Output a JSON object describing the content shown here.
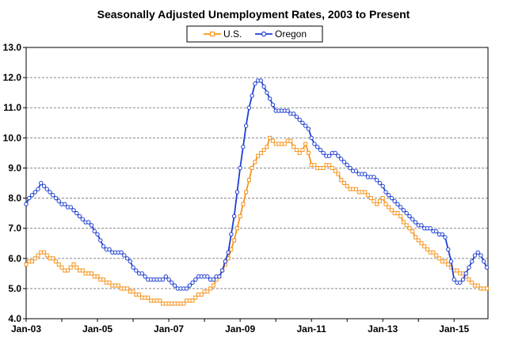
{
  "chart_data": {
    "type": "line",
    "title": "Seasonally Adjusted Unemployment Rates, 2003 to Present",
    "xlabel": "",
    "ylabel": "",
    "ylim": [
      4.0,
      13.0
    ],
    "yticks": [
      "4.0",
      "5.0",
      "6.0",
      "7.0",
      "8.0",
      "9.0",
      "10.0",
      "11.0",
      "12.0",
      "13.0"
    ],
    "xticks": [
      {
        "label": "Jan-03",
        "year": 2003
      },
      {
        "label": "Jan-05",
        "year": 2005
      },
      {
        "label": "Jan-07",
        "year": 2007
      },
      {
        "label": "Jan-09",
        "year": 2009
      },
      {
        "label": "Jan-11",
        "year": 2011
      },
      {
        "label": "Jan-13",
        "year": 2013
      },
      {
        "label": "Jan-15",
        "year": 2015
      }
    ],
    "xlim": [
      2003.0,
      2015.95
    ],
    "grid": true,
    "legend": "top-center",
    "series": [
      {
        "name": "U.S.",
        "color": "#F7941D",
        "marker": "square",
        "points": [
          [
            2003.0,
            5.8
          ],
          [
            2003.25,
            6.0
          ],
          [
            2003.45,
            6.3
          ],
          [
            2003.6,
            6.1
          ],
          [
            2003.8,
            5.9
          ],
          [
            2004.0,
            5.7
          ],
          [
            2004.15,
            5.6
          ],
          [
            2004.3,
            5.8
          ],
          [
            2004.5,
            5.6
          ],
          [
            2004.8,
            5.5
          ],
          [
            2005.0,
            5.4
          ],
          [
            2005.3,
            5.2
          ],
          [
            2005.5,
            5.1
          ],
          [
            2005.75,
            5.0
          ],
          [
            2006.0,
            4.9
          ],
          [
            2006.3,
            4.7
          ],
          [
            2006.6,
            4.6
          ],
          [
            2006.9,
            4.5
          ],
          [
            2007.0,
            4.5
          ],
          [
            2007.3,
            4.5
          ],
          [
            2007.6,
            4.6
          ],
          [
            2007.9,
            4.8
          ],
          [
            2008.2,
            5.0
          ],
          [
            2008.45,
            5.5
          ],
          [
            2008.7,
            6.1
          ],
          [
            2008.9,
            6.9
          ],
          [
            2009.1,
            7.9
          ],
          [
            2009.3,
            8.9
          ],
          [
            2009.5,
            9.4
          ],
          [
            2009.7,
            9.6
          ],
          [
            2009.85,
            10.0
          ],
          [
            2010.0,
            9.8
          ],
          [
            2010.2,
            9.8
          ],
          [
            2010.4,
            9.9
          ],
          [
            2010.55,
            9.6
          ],
          [
            2010.7,
            9.5
          ],
          [
            2010.85,
            9.8
          ],
          [
            2011.0,
            9.1
          ],
          [
            2011.2,
            9.0
          ],
          [
            2011.5,
            9.1
          ],
          [
            2011.7,
            8.9
          ],
          [
            2011.9,
            8.5
          ],
          [
            2012.1,
            8.3
          ],
          [
            2012.4,
            8.2
          ],
          [
            2012.6,
            8.1
          ],
          [
            2012.8,
            7.8
          ],
          [
            2013.0,
            8.0
          ],
          [
            2013.2,
            7.6
          ],
          [
            2013.4,
            7.5
          ],
          [
            2013.6,
            7.2
          ],
          [
            2013.8,
            6.9
          ],
          [
            2014.0,
            6.6
          ],
          [
            2014.2,
            6.3
          ],
          [
            2014.5,
            6.1
          ],
          [
            2014.8,
            5.8
          ],
          [
            2015.0,
            5.6
          ],
          [
            2015.2,
            5.5
          ],
          [
            2015.4,
            5.3
          ],
          [
            2015.6,
            5.1
          ],
          [
            2015.8,
            5.0
          ],
          [
            2015.95,
            5.0
          ]
        ]
      },
      {
        "name": "Oregon",
        "color": "#1F3FD2",
        "marker": "circle",
        "points": [
          [
            2003.0,
            7.8
          ],
          [
            2003.15,
            8.1
          ],
          [
            2003.3,
            8.3
          ],
          [
            2003.45,
            8.5
          ],
          [
            2003.6,
            8.3
          ],
          [
            2003.8,
            8.0
          ],
          [
            2004.0,
            7.8
          ],
          [
            2004.2,
            7.7
          ],
          [
            2004.4,
            7.5
          ],
          [
            2004.6,
            7.3
          ],
          [
            2004.8,
            7.1
          ],
          [
            2005.0,
            6.8
          ],
          [
            2005.15,
            6.4
          ],
          [
            2005.4,
            6.2
          ],
          [
            2005.6,
            6.2
          ],
          [
            2005.8,
            6.1
          ],
          [
            2006.0,
            5.7
          ],
          [
            2006.2,
            5.5
          ],
          [
            2006.4,
            5.3
          ],
          [
            2006.6,
            5.3
          ],
          [
            2006.8,
            5.3
          ],
          [
            2006.9,
            5.4
          ],
          [
            2007.0,
            5.3
          ],
          [
            2007.15,
            5.1
          ],
          [
            2007.3,
            5.0
          ],
          [
            2007.5,
            5.0
          ],
          [
            2007.7,
            5.2
          ],
          [
            2007.85,
            5.4
          ],
          [
            2008.0,
            5.4
          ],
          [
            2008.2,
            5.3
          ],
          [
            2008.4,
            5.4
          ],
          [
            2008.55,
            5.7
          ],
          [
            2008.7,
            6.4
          ],
          [
            2008.85,
            7.5
          ],
          [
            2009.0,
            9.0
          ],
          [
            2009.15,
            10.3
          ],
          [
            2009.3,
            11.3
          ],
          [
            2009.45,
            11.9
          ],
          [
            2009.55,
            11.9
          ],
          [
            2009.7,
            11.7
          ],
          [
            2009.85,
            11.2
          ],
          [
            2010.0,
            10.9
          ],
          [
            2010.3,
            10.9
          ],
          [
            2010.5,
            10.8
          ],
          [
            2010.7,
            10.6
          ],
          [
            2010.9,
            10.3
          ],
          [
            2011.05,
            9.9
          ],
          [
            2011.2,
            9.6
          ],
          [
            2011.4,
            9.4
          ],
          [
            2011.65,
            9.5
          ],
          [
            2011.85,
            9.3
          ],
          [
            2012.0,
            9.1
          ],
          [
            2012.2,
            8.9
          ],
          [
            2012.45,
            8.8
          ],
          [
            2012.7,
            8.7
          ],
          [
            2012.95,
            8.5
          ],
          [
            2013.15,
            8.1
          ],
          [
            2013.4,
            7.8
          ],
          [
            2013.6,
            7.6
          ],
          [
            2013.8,
            7.3
          ],
          [
            2014.0,
            7.1
          ],
          [
            2014.25,
            7.0
          ],
          [
            2014.5,
            6.9
          ],
          [
            2014.75,
            6.7
          ],
          [
            2014.9,
            6.0
          ],
          [
            2015.0,
            5.3
          ],
          [
            2015.15,
            5.2
          ],
          [
            2015.35,
            5.5
          ],
          [
            2015.55,
            6.1
          ],
          [
            2015.7,
            6.2
          ],
          [
            2015.82,
            5.9
          ],
          [
            2015.92,
            5.7
          ]
        ]
      }
    ]
  }
}
